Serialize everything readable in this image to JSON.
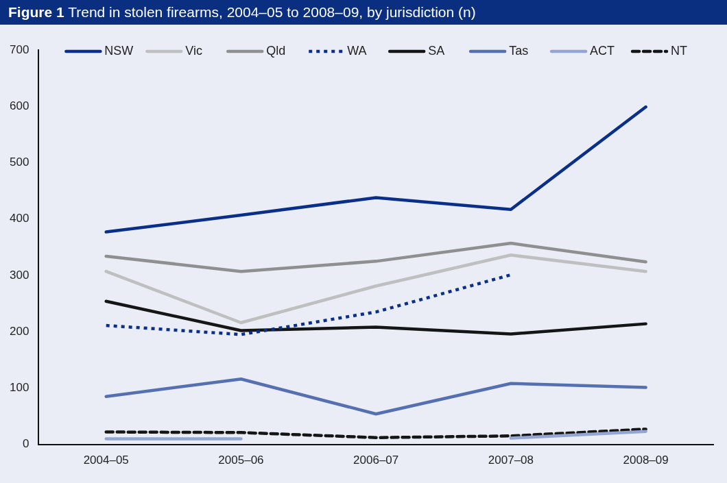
{
  "chart_data": {
    "type": "line",
    "title": "Figure 1 Trend in stolen firearms, 2004–05 to 2008–09, by jurisdiction (n)",
    "categories": [
      "2004–05",
      "2005–06",
      "2006–07",
      "2007–08",
      "2008–09"
    ],
    "series": [
      {
        "name": "NSW",
        "color": "#0a2f8a",
        "values": [
          377,
          407,
          438,
          417,
          599
        ]
      },
      {
        "name": "Vic",
        "color": "#bfbfbf",
        "values": [
          307,
          216,
          281,
          336,
          307
        ]
      },
      {
        "name": "Qld",
        "color": "#8f8f8f",
        "values": [
          334,
          307,
          325,
          357,
          324
        ]
      },
      {
        "name": "WA",
        "color": "#0a2f8a",
        "line_style": "dotted",
        "values": [
          211,
          195,
          235,
          301,
          null
        ]
      },
      {
        "name": "SA",
        "color": "#151515",
        "values": [
          254,
          202,
          208,
          196,
          214
        ]
      },
      {
        "name": "Tas",
        "color": "#5470b0",
        "values": [
          85,
          116,
          54,
          108,
          101
        ]
      },
      {
        "name": "ACT",
        "color": "#93a5d3",
        "values": [
          10,
          10,
          null,
          11,
          23
        ]
      },
      {
        "name": "NT",
        "color": "#151515",
        "line_style": "dashed",
        "values": [
          22,
          21,
          12,
          15,
          27
        ]
      }
    ],
    "ylim": [
      0,
      700
    ],
    "yticks": [
      0,
      100,
      200,
      300,
      400,
      500,
      600,
      700
    ],
    "grid": false,
    "legend": "top",
    "marker": "none",
    "line_style": "solid"
  }
}
